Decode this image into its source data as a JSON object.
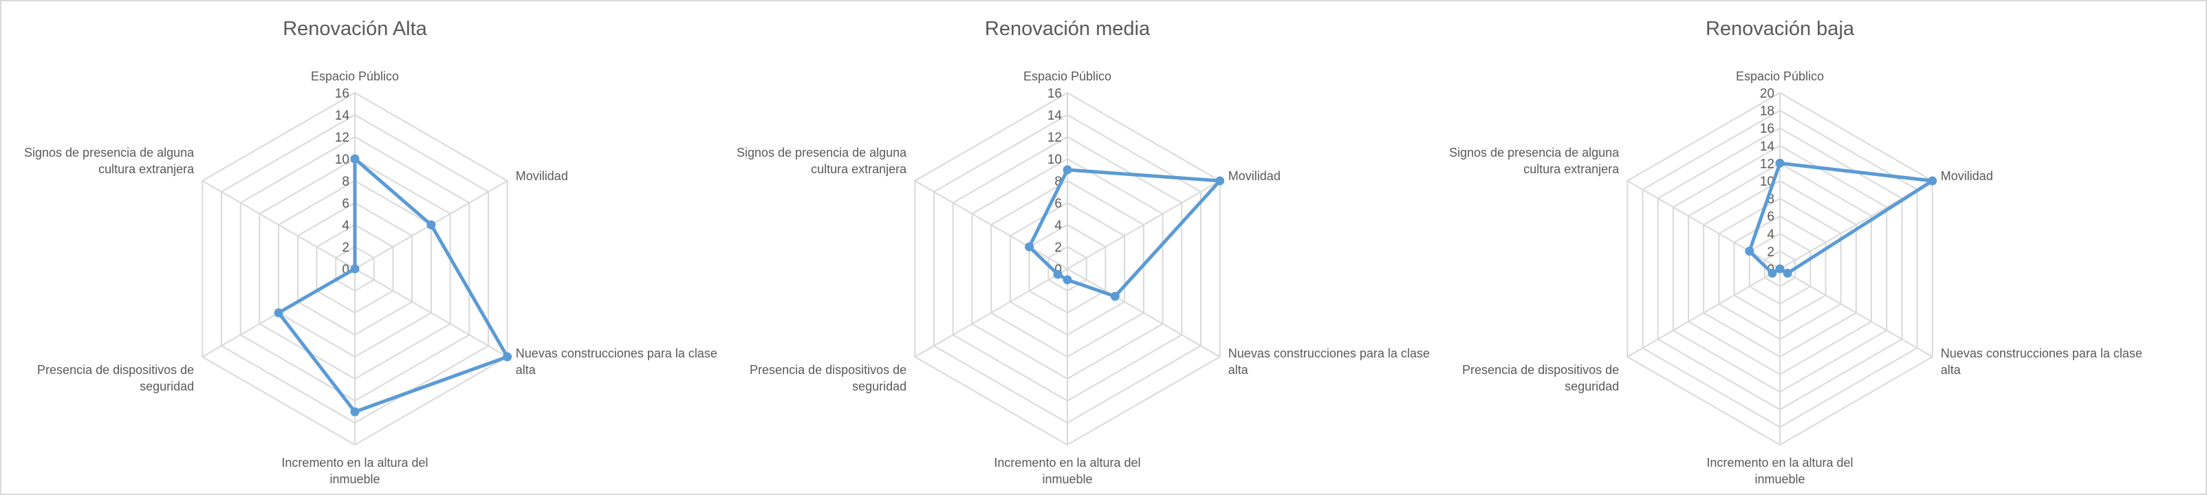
{
  "chart_data": [
    {
      "type": "radar",
      "title": "Renovación Alta",
      "axes": [
        [
          "Espacio Público"
        ],
        [
          "Movilidad"
        ],
        [
          "Nuevas construcciones para la clase",
          "alta"
        ],
        [
          "Incremento en la altura del",
          "inmueble"
        ],
        [
          "Presencia de dispositivos de",
          "seguridad"
        ],
        [
          "Signos de presencia de alguna",
          "cultura extranjera"
        ]
      ],
      "rmax": 16,
      "step": 2,
      "ticks": [
        "0",
        "2",
        "4",
        "6",
        "8",
        "10",
        "12",
        "14",
        "16"
      ],
      "values": [
        10,
        8,
        16,
        13,
        8,
        0
      ],
      "series_color": "#5b9bd5",
      "grid": true,
      "legend": "none"
    },
    {
      "type": "radar",
      "title": "Renovación media",
      "axes": [
        [
          "Espacio Público"
        ],
        [
          "Movilidad"
        ],
        [
          "Nuevas construcciones para la clase",
          "alta"
        ],
        [
          "Incremento en la altura del",
          "inmueble"
        ],
        [
          "Presencia de dispositivos de",
          "seguridad"
        ],
        [
          "Signos de presencia de alguna",
          "cultura extranjera"
        ]
      ],
      "rmax": 16,
      "step": 2,
      "ticks": [
        "0",
        "2",
        "4",
        "6",
        "8",
        "10",
        "12",
        "14",
        "16"
      ],
      "values": [
        9,
        16,
        5,
        1,
        1,
        4
      ],
      "series_color": "#5b9bd5",
      "grid": true,
      "legend": "none"
    },
    {
      "type": "radar",
      "title": "Renovación baja",
      "axes": [
        [
          "Espacio Público"
        ],
        [
          "Movilidad"
        ],
        [
          "Nuevas construcciones para la clase",
          "alta"
        ],
        [
          "Incremento en la altura del",
          "inmueble"
        ],
        [
          "Presencia de dispositivos de",
          "seguridad"
        ],
        [
          "Signos de presencia de alguna",
          "cultura extranjera"
        ]
      ],
      "rmax": 20,
      "step": 2,
      "ticks": [
        "0",
        "2",
        "4",
        "6",
        "8",
        "10",
        "12",
        "14",
        "16",
        "18",
        "20"
      ],
      "values": [
        12,
        20,
        1,
        0,
        1,
        4
      ],
      "series_color": "#5b9bd5",
      "grid": true,
      "legend": "none"
    }
  ]
}
